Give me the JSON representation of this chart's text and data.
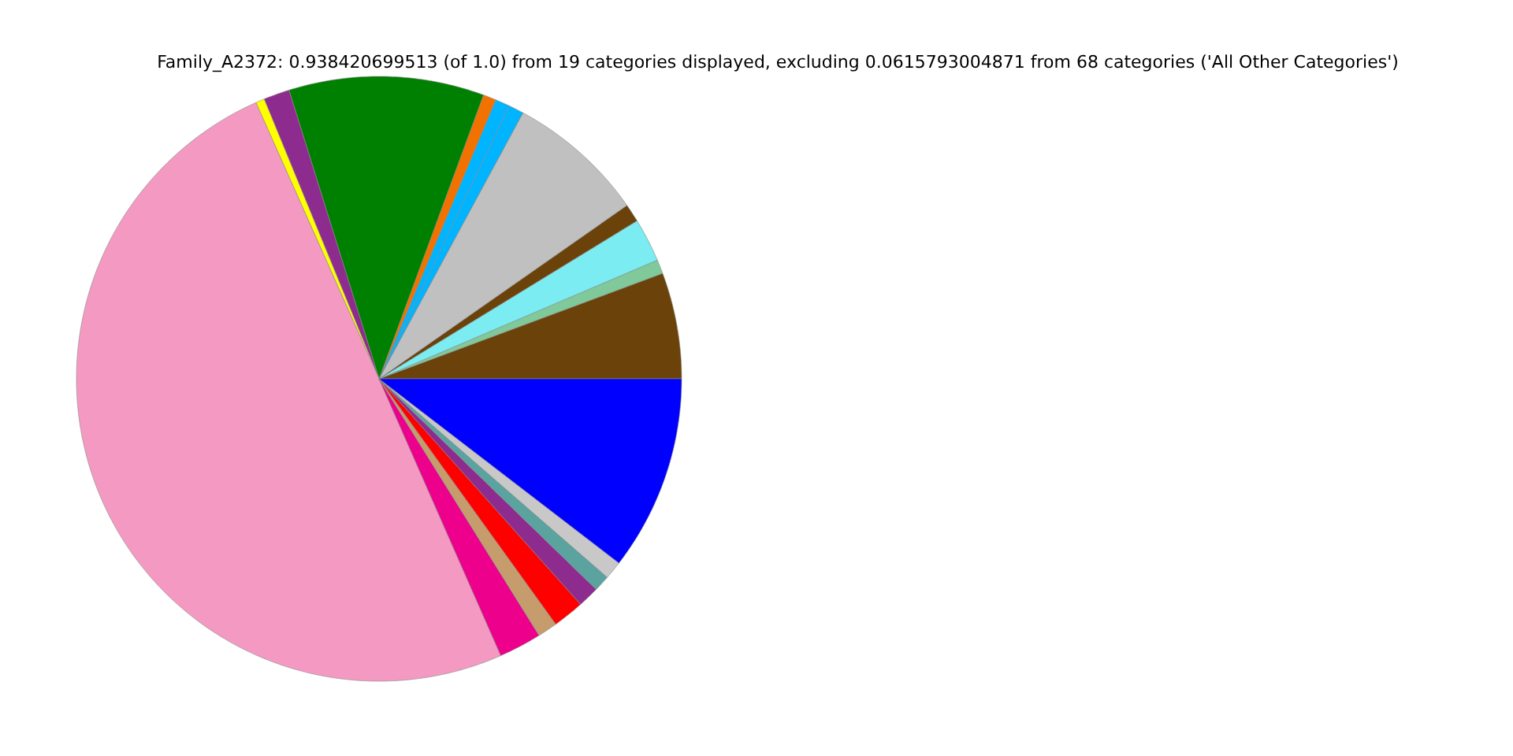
{
  "chart_data": {
    "type": "pie",
    "title": "Family_A2372: 0.938420699513 (of 1.0) from 19 categories displayed, excluding 0.0615793004871 from 68 categories ('All Other Categories')",
    "categories": [
      null,
      null,
      null,
      null,
      null,
      null,
      null,
      null,
      null,
      null,
      null,
      null,
      null,
      null,
      null,
      null,
      null,
      null,
      null
    ],
    "values": [
      5.67,
      0.75,
      2.33,
      0.97,
      7.39,
      0.81,
      0.78,
      0.69,
      10.42,
      1.39,
      0.47,
      49.92,
      2.28,
      1.06,
      1.67,
      1.14,
      0.86,
      0.97,
      10.43
    ],
    "colors": [
      "#6b430a",
      "#7fc99a",
      "#7aecf2",
      "#6b430a",
      "#c0c0c0",
      "#00b4ff",
      "#00b4ff",
      "#f27200",
      "#008000",
      "#8e2b8e",
      "#ffff00",
      "#f49ac2",
      "#ec008c",
      "#c69c6d",
      "#ff0000",
      "#8e2b8e",
      "#5aa39e",
      "#c8c8c8",
      "#0000ff"
    ]
  }
}
